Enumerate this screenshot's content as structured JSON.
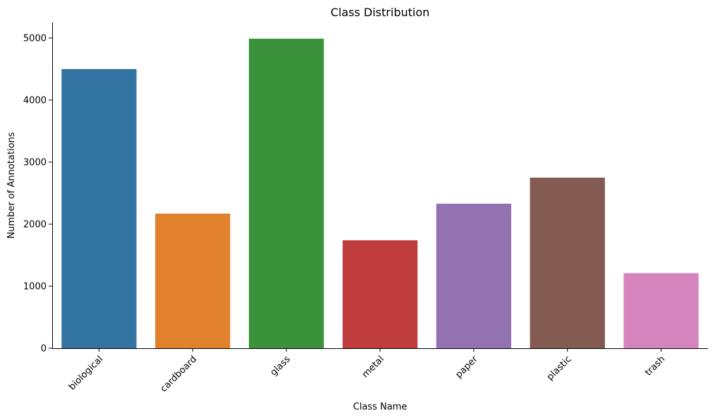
{
  "chart_data": {
    "type": "bar",
    "title": "Class Distribution",
    "xlabel": "Class Name",
    "ylabel": "Number of Annotations",
    "categories": [
      "biological",
      "cardboard",
      "glass",
      "metal",
      "paper",
      "plastic",
      "trash"
    ],
    "values": [
      4500,
      2170,
      4990,
      1740,
      2330,
      2750,
      1210
    ],
    "colors": [
      "#3274a1",
      "#e1812c",
      "#3a923a",
      "#c03d3e",
      "#9372b2",
      "#845b53",
      "#d684bd"
    ],
    "ylim": [
      0,
      5250
    ],
    "yticks": [
      0,
      1000,
      2000,
      3000,
      4000,
      5000
    ],
    "grid": false,
    "xtick_rotation": 45
  }
}
